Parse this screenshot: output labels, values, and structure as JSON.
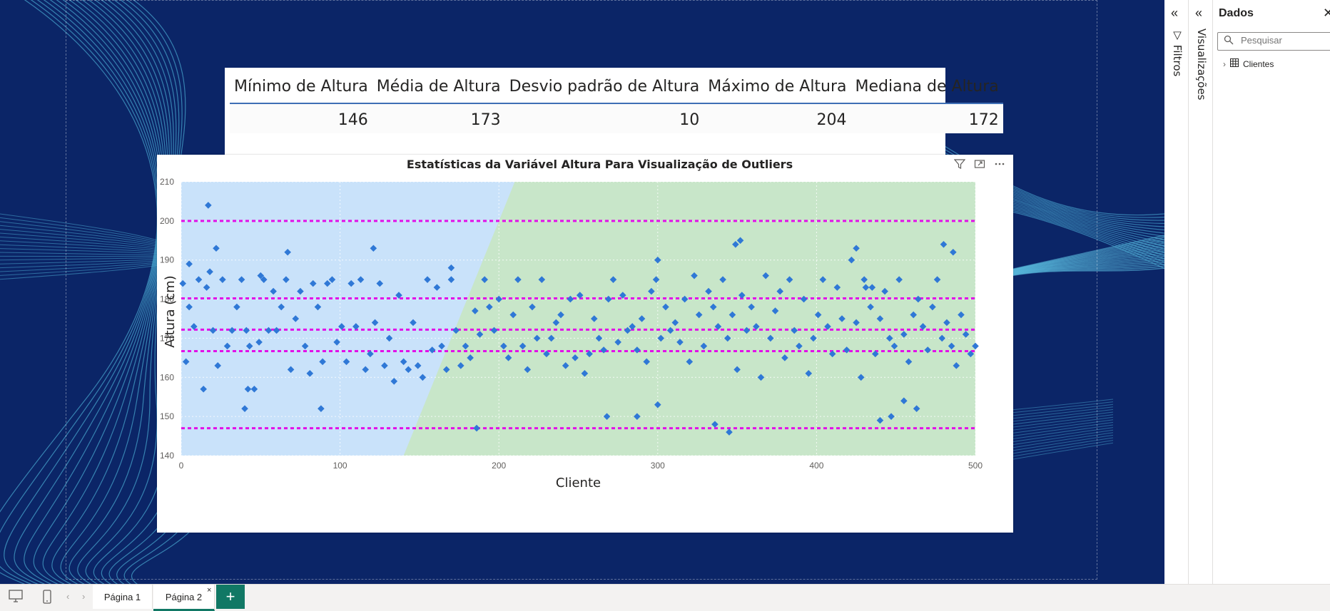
{
  "stats_table": {
    "headers": [
      "Mínimo de Altura",
      "Média de Altura",
      "Desvio padrão de Altura",
      "Máximo de Altura",
      "Mediana de Altura"
    ],
    "values": [
      "146",
      "173",
      "10",
      "204",
      "172"
    ]
  },
  "chart_data": {
    "type": "scatter",
    "title": "Estatísticas da Variável Altura Para Visualização de Outliers",
    "xlabel": "Cliente",
    "ylabel": "Altura (cm)",
    "xlim": [
      0,
      500
    ],
    "ylim": [
      140,
      210
    ],
    "x_ticks": [
      "0",
      "100",
      "200",
      "300",
      "400",
      "500"
    ],
    "y_ticks": [
      "140",
      "150",
      "160",
      "170",
      "180",
      "190",
      "200",
      "210"
    ],
    "reference_lines": [
      200,
      180.2,
      172.2,
      166.7,
      147
    ],
    "colors": {
      "points": "#2f78d6",
      "reference_lines": "#e20fe8",
      "band_left": "#c9e2fa",
      "band_right": "#c8e6c9"
    },
    "series": [
      {
        "x": [
          1,
          3,
          5,
          8,
          11,
          14,
          16,
          18,
          20,
          23,
          26,
          29,
          32,
          35,
          38,
          41,
          43,
          46,
          49,
          52,
          55,
          58,
          60,
          63,
          66,
          69,
          72,
          75,
          78,
          81,
          83,
          86,
          89,
          92,
          95,
          98,
          101,
          104,
          107,
          110,
          113,
          116,
          119,
          122,
          125,
          128,
          131,
          134,
          137,
          140,
          143,
          146,
          149,
          152,
          155,
          158,
          161,
          164,
          167,
          170,
          173,
          176,
          179,
          182,
          185,
          188,
          191,
          194,
          197,
          200,
          203,
          206,
          209,
          212,
          215,
          218,
          221,
          224,
          227,
          230,
          233,
          236,
          239,
          242,
          245,
          248,
          251,
          254,
          257,
          260,
          263,
          266,
          269,
          272,
          275,
          278,
          281,
          284,
          287,
          290,
          293,
          296,
          299,
          302,
          305,
          308,
          311,
          314,
          317,
          320,
          323,
          326,
          329,
          332,
          335,
          338,
          341,
          344,
          347,
          350,
          353,
          356,
          359,
          362,
          365,
          368,
          371,
          374,
          377,
          380,
          383,
          386,
          389,
          392,
          395,
          398,
          401,
          404,
          407,
          410,
          413,
          416,
          419,
          422,
          425,
          428,
          431,
          434,
          437,
          440,
          443,
          446,
          449,
          452,
          455,
          458,
          461,
          464,
          467,
          470,
          473,
          476,
          479,
          482,
          485,
          488,
          491,
          494,
          497,
          500,
          17,
          50,
          67,
          88,
          40,
          42,
          186,
          345,
          440,
          447,
          455,
          463,
          268,
          287,
          300,
          336,
          352,
          349,
          425,
          480,
          486,
          430,
          435,
          300,
          121,
          170,
          5,
          22
        ],
        "y": [
          184,
          164,
          189,
          173,
          185,
          157,
          183,
          187,
          172,
          163,
          185,
          168,
          172,
          178,
          185,
          172,
          168,
          157,
          169,
          185,
          172,
          182,
          172,
          178,
          185,
          162,
          175,
          182,
          168,
          161,
          184,
          178,
          164,
          184,
          185,
          169,
          173,
          164,
          184,
          173,
          185,
          162,
          166,
          174,
          184,
          163,
          170,
          159,
          181,
          164,
          162,
          174,
          163,
          160,
          185,
          167,
          183,
          168,
          162,
          185,
          172,
          163,
          168,
          165,
          177,
          171,
          185,
          178,
          172,
          180,
          168,
          165,
          176,
          185,
          168,
          162,
          178,
          170,
          185,
          166,
          170,
          174,
          176,
          163,
          180,
          165,
          181,
          161,
          166,
          175,
          170,
          167,
          180,
          185,
          169,
          181,
          172,
          173,
          167,
          175,
          164,
          182,
          185,
          170,
          178,
          172,
          174,
          169,
          180,
          164,
          186,
          176,
          168,
          182,
          178,
          173,
          185,
          170,
          176,
          162,
          181,
          172,
          178,
          173,
          160,
          186,
          170,
          177,
          182,
          165,
          185,
          172,
          168,
          180,
          161,
          170,
          176,
          185,
          173,
          166,
          183,
          175,
          167,
          190,
          174,
          160,
          183,
          178,
          166,
          175,
          182,
          170,
          168,
          185,
          171,
          164,
          176,
          180,
          173,
          167,
          178,
          185,
          170,
          174,
          168,
          163,
          176,
          171,
          166,
          168,
          204,
          186,
          192,
          152,
          152,
          157,
          147,
          146,
          149,
          150,
          154,
          152,
          150,
          150,
          153,
          148,
          195,
          194,
          193,
          194,
          192,
          185,
          183,
          190,
          193,
          188,
          178,
          193
        ],
        "marker": "diamond"
      }
    ]
  },
  "visual_header": {
    "filter_icon": "filter-icon",
    "focus_icon": "focus-mode-icon",
    "more_icon": "more-options-icon"
  },
  "panes": {
    "filters_label": "Filtros",
    "visualizations_label": "Visualizações"
  },
  "data_pane": {
    "title": "Dados",
    "search_placeholder": "Pesquisar",
    "tables": [
      "Clientes"
    ]
  },
  "page_tabs": [
    {
      "label": "Página 1",
      "active": false
    },
    {
      "label": "Página 2",
      "active": true
    }
  ],
  "add_page_label": "+",
  "tab_close_label": "×"
}
